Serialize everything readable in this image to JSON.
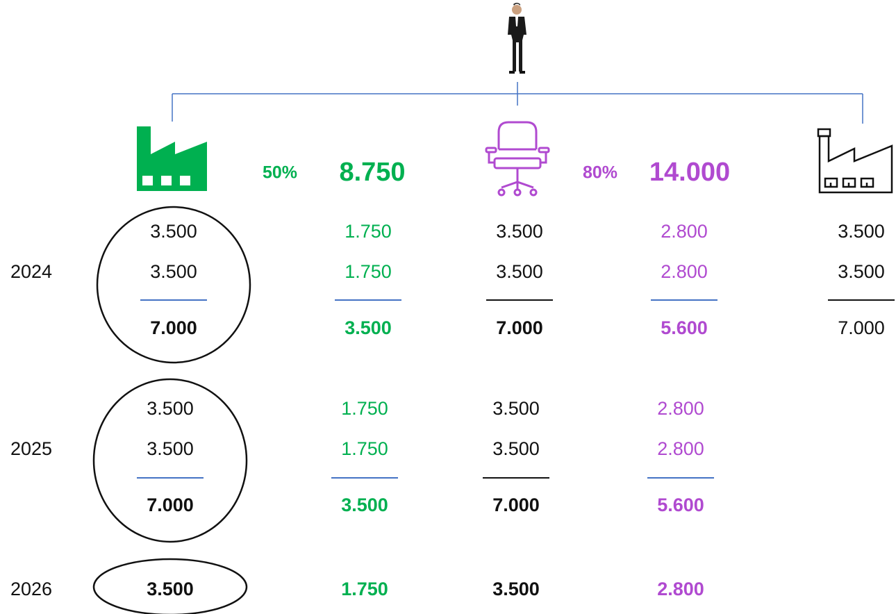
{
  "header": {
    "green": {
      "percent": "50%",
      "total": "8.750"
    },
    "purple": {
      "percent": "80%",
      "total": "14.000"
    }
  },
  "years": [
    {
      "year": "2024",
      "columns": [
        {
          "lines": [
            "3.500",
            "3.500"
          ],
          "sum": "7.000"
        },
        {
          "lines": [
            "1.750",
            "1.750"
          ],
          "sum": "3.500"
        },
        {
          "lines": [
            "3.500",
            "3.500"
          ],
          "sum": "7.000"
        },
        {
          "lines": [
            "2.800",
            "2.800"
          ],
          "sum": "5.600"
        },
        {
          "lines": [
            "3.500",
            "3.500"
          ],
          "sum": "7.000"
        }
      ]
    },
    {
      "year": "2025",
      "columns": [
        {
          "lines": [
            "3.500",
            "3.500"
          ],
          "sum": "7.000"
        },
        {
          "lines": [
            "1.750",
            "1.750"
          ],
          "sum": "3.500"
        },
        {
          "lines": [
            "3.500",
            "3.500"
          ],
          "sum": "7.000"
        },
        {
          "lines": [
            "2.800",
            "2.800"
          ],
          "sum": "5.600"
        }
      ]
    },
    {
      "year": "2026",
      "columns": [
        {
          "sum": "3.500"
        },
        {
          "sum": "1.750"
        },
        {
          "sum": "3.500"
        },
        {
          "sum": "2.800"
        }
      ]
    }
  ]
}
